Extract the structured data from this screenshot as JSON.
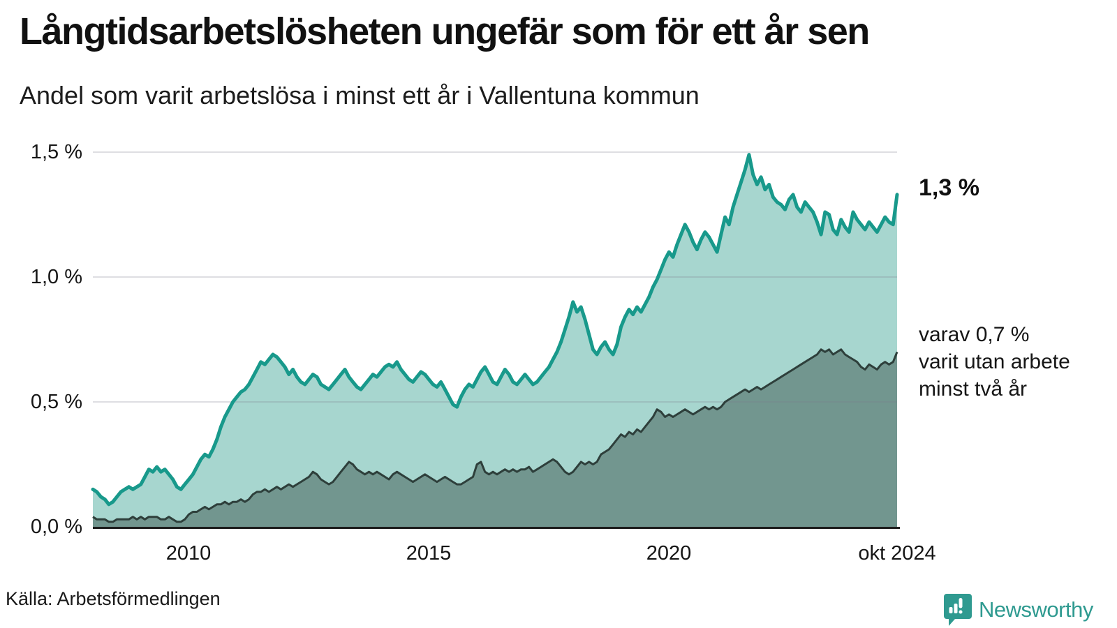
{
  "title": "Långtidsarbetslösheten ungefär som för ett år sen",
  "subtitle": "Andel som varit arbetslösa i minst ett år i Vallentuna kommun",
  "source": "Källa: Arbetsförmedlingen",
  "brand": {
    "name": "Newsworthy",
    "color": "#2f9a90",
    "icon": "newsworthy-bubble-barchart-icon"
  },
  "annotations": {
    "latest_total": "1,3 %",
    "secondary_line1": "varav 0,7 %",
    "secondary_line2": "varit utan arbete",
    "secondary_line3": "minst två år"
  },
  "chart_data": {
    "type": "area",
    "title": "Långtidsarbetslösheten ungefär som för ett år sen",
    "subtitle": "Andel som varit arbetslösa i minst ett år i Vallentuna kommun",
    "x_start": "2008-01",
    "x_end": "2024-10",
    "x_frequency": "monthly",
    "ylim": [
      0,
      1.57
    ],
    "grid": "horizontal",
    "legend_position": "right-annotations",
    "y_ticks": [
      {
        "label": "0,0 %",
        "value": 0.0
      },
      {
        "label": "0,5 %",
        "value": 0.5
      },
      {
        "label": "1,0 %",
        "value": 1.0
      },
      {
        "label": "1,5 %",
        "value": 1.5
      }
    ],
    "x_ticks": [
      {
        "label": "2010",
        "month_index": 24
      },
      {
        "label": "2015",
        "month_index": 84
      },
      {
        "label": "2020",
        "month_index": 144
      },
      {
        "label": "okt 2024",
        "month_index": 201
      }
    ],
    "series": [
      {
        "name": "Andel arbetslösa minst ett år",
        "end_value_label": "1,3 %",
        "line_color": "#18998b",
        "fill_color": "#a7d6cf",
        "values": [
          0.15,
          0.14,
          0.12,
          0.11,
          0.09,
          0.1,
          0.12,
          0.14,
          0.15,
          0.16,
          0.15,
          0.16,
          0.17,
          0.2,
          0.23,
          0.22,
          0.24,
          0.22,
          0.23,
          0.21,
          0.19,
          0.16,
          0.15,
          0.17,
          0.19,
          0.21,
          0.24,
          0.27,
          0.29,
          0.28,
          0.31,
          0.35,
          0.4,
          0.44,
          0.47,
          0.5,
          0.52,
          0.54,
          0.55,
          0.57,
          0.6,
          0.63,
          0.66,
          0.65,
          0.67,
          0.69,
          0.68,
          0.66,
          0.64,
          0.61,
          0.63,
          0.6,
          0.58,
          0.57,
          0.59,
          0.61,
          0.6,
          0.57,
          0.56,
          0.55,
          0.57,
          0.59,
          0.61,
          0.63,
          0.6,
          0.58,
          0.56,
          0.55,
          0.57,
          0.59,
          0.61,
          0.6,
          0.62,
          0.64,
          0.65,
          0.64,
          0.66,
          0.63,
          0.61,
          0.59,
          0.58,
          0.6,
          0.62,
          0.61,
          0.59,
          0.57,
          0.56,
          0.58,
          0.55,
          0.52,
          0.49,
          0.48,
          0.52,
          0.55,
          0.57,
          0.56,
          0.59,
          0.62,
          0.64,
          0.61,
          0.58,
          0.57,
          0.6,
          0.63,
          0.61,
          0.58,
          0.57,
          0.59,
          0.61,
          0.59,
          0.57,
          0.58,
          0.6,
          0.62,
          0.64,
          0.67,
          0.7,
          0.74,
          0.79,
          0.84,
          0.9,
          0.86,
          0.88,
          0.83,
          0.77,
          0.71,
          0.69,
          0.72,
          0.74,
          0.71,
          0.69,
          0.73,
          0.8,
          0.84,
          0.87,
          0.85,
          0.88,
          0.86,
          0.89,
          0.92,
          0.96,
          0.99,
          1.03,
          1.07,
          1.1,
          1.08,
          1.13,
          1.17,
          1.21,
          1.18,
          1.14,
          1.11,
          1.15,
          1.18,
          1.16,
          1.13,
          1.1,
          1.17,
          1.24,
          1.21,
          1.28,
          1.33,
          1.38,
          1.43,
          1.49,
          1.41,
          1.37,
          1.4,
          1.35,
          1.37,
          1.32,
          1.3,
          1.29,
          1.27,
          1.31,
          1.33,
          1.28,
          1.26,
          1.3,
          1.28,
          1.26,
          1.22,
          1.17,
          1.26,
          1.25,
          1.19,
          1.17,
          1.23,
          1.2,
          1.18,
          1.26,
          1.23,
          1.21,
          1.19,
          1.22,
          1.2,
          1.18,
          1.21,
          1.24,
          1.22,
          1.21,
          1.33
        ]
      },
      {
        "name": "varav utan arbete minst två år",
        "end_value_label": "0,7 %",
        "line_color": "#2e3f3b",
        "fill_color": "#72968f",
        "values": [
          0.04,
          0.03,
          0.03,
          0.03,
          0.02,
          0.02,
          0.03,
          0.03,
          0.03,
          0.03,
          0.04,
          0.03,
          0.04,
          0.03,
          0.04,
          0.04,
          0.04,
          0.03,
          0.03,
          0.04,
          0.03,
          0.02,
          0.02,
          0.03,
          0.05,
          0.06,
          0.06,
          0.07,
          0.08,
          0.07,
          0.08,
          0.09,
          0.09,
          0.1,
          0.09,
          0.1,
          0.1,
          0.11,
          0.1,
          0.11,
          0.13,
          0.14,
          0.14,
          0.15,
          0.14,
          0.15,
          0.16,
          0.15,
          0.16,
          0.17,
          0.16,
          0.17,
          0.18,
          0.19,
          0.2,
          0.22,
          0.21,
          0.19,
          0.18,
          0.17,
          0.18,
          0.2,
          0.22,
          0.24,
          0.26,
          0.25,
          0.23,
          0.22,
          0.21,
          0.22,
          0.21,
          0.22,
          0.21,
          0.2,
          0.19,
          0.21,
          0.22,
          0.21,
          0.2,
          0.19,
          0.18,
          0.19,
          0.2,
          0.21,
          0.2,
          0.19,
          0.18,
          0.19,
          0.2,
          0.19,
          0.18,
          0.17,
          0.17,
          0.18,
          0.19,
          0.2,
          0.25,
          0.26,
          0.22,
          0.21,
          0.22,
          0.21,
          0.22,
          0.23,
          0.22,
          0.23,
          0.22,
          0.23,
          0.23,
          0.24,
          0.22,
          0.23,
          0.24,
          0.25,
          0.26,
          0.27,
          0.26,
          0.24,
          0.22,
          0.21,
          0.22,
          0.24,
          0.26,
          0.25,
          0.26,
          0.25,
          0.26,
          0.29,
          0.3,
          0.31,
          0.33,
          0.35,
          0.37,
          0.36,
          0.38,
          0.37,
          0.39,
          0.38,
          0.4,
          0.42,
          0.44,
          0.47,
          0.46,
          0.44,
          0.45,
          0.44,
          0.45,
          0.46,
          0.47,
          0.46,
          0.45,
          0.46,
          0.47,
          0.48,
          0.47,
          0.48,
          0.47,
          0.48,
          0.5,
          0.51,
          0.52,
          0.53,
          0.54,
          0.55,
          0.54,
          0.55,
          0.56,
          0.55,
          0.56,
          0.57,
          0.58,
          0.59,
          0.6,
          0.61,
          0.62,
          0.63,
          0.64,
          0.65,
          0.66,
          0.67,
          0.68,
          0.69,
          0.71,
          0.7,
          0.71,
          0.69,
          0.7,
          0.71,
          0.69,
          0.68,
          0.67,
          0.66,
          0.64,
          0.63,
          0.65,
          0.64,
          0.63,
          0.65,
          0.66,
          0.65,
          0.66,
          0.7
        ]
      }
    ]
  }
}
